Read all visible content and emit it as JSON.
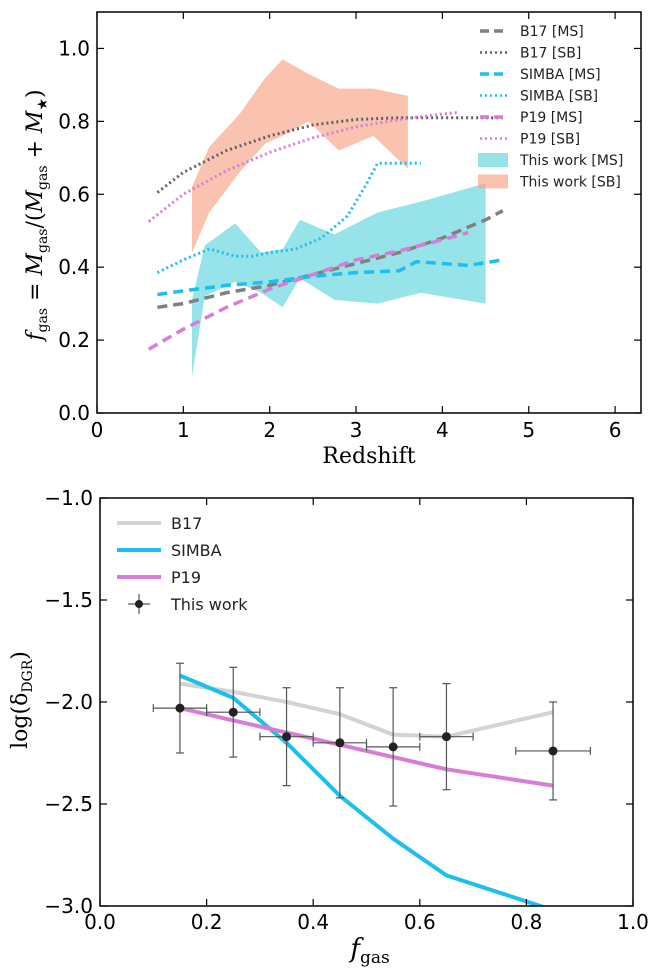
{
  "chart_data": [
    {
      "type": "line",
      "xlabel": "Redshift",
      "ylabel": "f_gas = M_gas / (M_gas + M_★)",
      "xlim": [
        0,
        6.3
      ],
      "ylim": [
        0,
        1.1
      ],
      "xticks": [
        "0",
        "1",
        "2",
        "3",
        "4",
        "5",
        "6"
      ],
      "yticks": [
        "0.0",
        "0.2",
        "0.4",
        "0.6",
        "0.8",
        "1.0"
      ],
      "legend_position": "top-right",
      "series": [
        {
          "name": "B17 [MS]",
          "color": "#808080",
          "style": "dashed",
          "x": [
            0.7,
            1.0,
            1.5,
            2.0,
            2.5,
            3.0,
            3.5,
            4.0,
            4.5,
            4.7
          ],
          "y": [
            0.29,
            0.3,
            0.33,
            0.35,
            0.38,
            0.41,
            0.44,
            0.48,
            0.53,
            0.555
          ]
        },
        {
          "name": "B17 [SB]",
          "color": "#606060",
          "style": "dotted",
          "x": [
            0.7,
            1.0,
            1.5,
            2.0,
            2.5,
            3.0,
            3.5,
            4.0,
            4.5,
            4.7
          ],
          "y": [
            0.605,
            0.66,
            0.72,
            0.76,
            0.79,
            0.805,
            0.81,
            0.81,
            0.81,
            0.81
          ]
        },
        {
          "name": "SIMBA [MS]",
          "color": "#1cbfee",
          "style": "dashed",
          "x": [
            0.7,
            1.0,
            1.5,
            2.0,
            2.5,
            3.0,
            3.5,
            3.7,
            4.0,
            4.3,
            4.7
          ],
          "y": [
            0.325,
            0.335,
            0.35,
            0.36,
            0.375,
            0.385,
            0.39,
            0.415,
            0.41,
            0.405,
            0.42
          ]
        },
        {
          "name": "SIMBA [SB]",
          "color": "#1cbfee",
          "style": "dotted",
          "x": [
            0.7,
            1.0,
            1.3,
            1.6,
            1.8,
            2.0,
            2.3,
            2.6,
            2.9,
            3.1,
            3.25,
            3.5,
            3.75
          ],
          "y": [
            0.385,
            0.42,
            0.45,
            0.43,
            0.43,
            0.44,
            0.45,
            0.48,
            0.54,
            0.62,
            0.685,
            0.685,
            0.685
          ]
        },
        {
          "name": "P19 [MS]",
          "color": "#d67ed6",
          "style": "dashed",
          "x": [
            0.6,
            1.0,
            1.5,
            2.0,
            2.5,
            3.0,
            3.5,
            4.0,
            4.3
          ],
          "y": [
            0.175,
            0.23,
            0.29,
            0.34,
            0.38,
            0.42,
            0.445,
            0.475,
            0.495
          ]
        },
        {
          "name": "P19 [SB]",
          "color": "#d67ed6",
          "style": "dotted",
          "x": [
            0.6,
            1.0,
            1.5,
            2.0,
            2.5,
            3.0,
            3.5,
            4.0,
            4.2
          ],
          "y": [
            0.525,
            0.6,
            0.665,
            0.715,
            0.755,
            0.785,
            0.805,
            0.82,
            0.825
          ]
        }
      ],
      "bands": [
        {
          "name": "This work [MS]",
          "color": "#5ed6de",
          "x": [
            1.1,
            1.25,
            1.6,
            1.9,
            2.15,
            2.35,
            2.75,
            3.25,
            3.75,
            4.5
          ],
          "lower": [
            0.1,
            0.32,
            0.36,
            0.33,
            0.29,
            0.37,
            0.31,
            0.3,
            0.33,
            0.3
          ],
          "upper": [
            0.31,
            0.46,
            0.52,
            0.44,
            0.45,
            0.53,
            0.49,
            0.55,
            0.58,
            0.63
          ]
        },
        {
          "name": "This work [SB]",
          "color": "#f7a386",
          "x": [
            1.1,
            1.3,
            1.65,
            1.95,
            2.15,
            2.45,
            2.8,
            3.2,
            3.6
          ],
          "lower": [
            0.44,
            0.55,
            0.66,
            0.74,
            0.76,
            0.8,
            0.72,
            0.76,
            0.67
          ],
          "upper": [
            0.62,
            0.73,
            0.82,
            0.92,
            0.97,
            0.93,
            0.89,
            0.89,
            0.87
          ]
        }
      ]
    },
    {
      "type": "line",
      "xlabel": "f_gas",
      "ylabel": "log(δ_DGR)",
      "xlim": [
        0.0,
        1.0
      ],
      "ylim": [
        -3.0,
        -1.0
      ],
      "xticks": [
        "0.0",
        "0.2",
        "0.4",
        "0.6",
        "0.8",
        "1.0"
      ],
      "yticks": [
        "−1.0",
        "−1.5",
        "−2.0",
        "−2.5",
        "−3.0"
      ],
      "legend_position": "top-left",
      "series": [
        {
          "name": "B17",
          "color": "#d3d3d3",
          "x": [
            0.15,
            0.25,
            0.35,
            0.45,
            0.55,
            0.65,
            0.85
          ],
          "y": [
            -1.91,
            -1.95,
            -2.0,
            -2.06,
            -2.16,
            -2.17,
            -2.05
          ]
        },
        {
          "name": "SIMBA",
          "color": "#1cbfee",
          "x": [
            0.15,
            0.25,
            0.35,
            0.45,
            0.55,
            0.65,
            0.85
          ],
          "y": [
            -1.87,
            -1.98,
            -2.2,
            -2.46,
            -2.67,
            -2.85,
            -3.02
          ]
        },
        {
          "name": "P19",
          "color": "#d67ed6",
          "x": [
            0.15,
            0.25,
            0.35,
            0.45,
            0.55,
            0.65,
            0.85
          ],
          "y": [
            -2.03,
            -2.09,
            -2.15,
            -2.21,
            -2.27,
            -2.33,
            -2.41
          ]
        }
      ],
      "points": {
        "name": "This work",
        "color": "#222222",
        "x": [
          0.15,
          0.25,
          0.35,
          0.45,
          0.55,
          0.65,
          0.85
        ],
        "y": [
          -2.03,
          -2.05,
          -2.17,
          -2.2,
          -2.22,
          -2.17,
          -2.24
        ],
        "xerr": [
          0.05,
          0.05,
          0.05,
          0.05,
          0.05,
          0.05,
          0.07
        ],
        "yerr": [
          0.22,
          0.22,
          0.24,
          0.27,
          0.29,
          0.26,
          0.24
        ]
      }
    }
  ]
}
